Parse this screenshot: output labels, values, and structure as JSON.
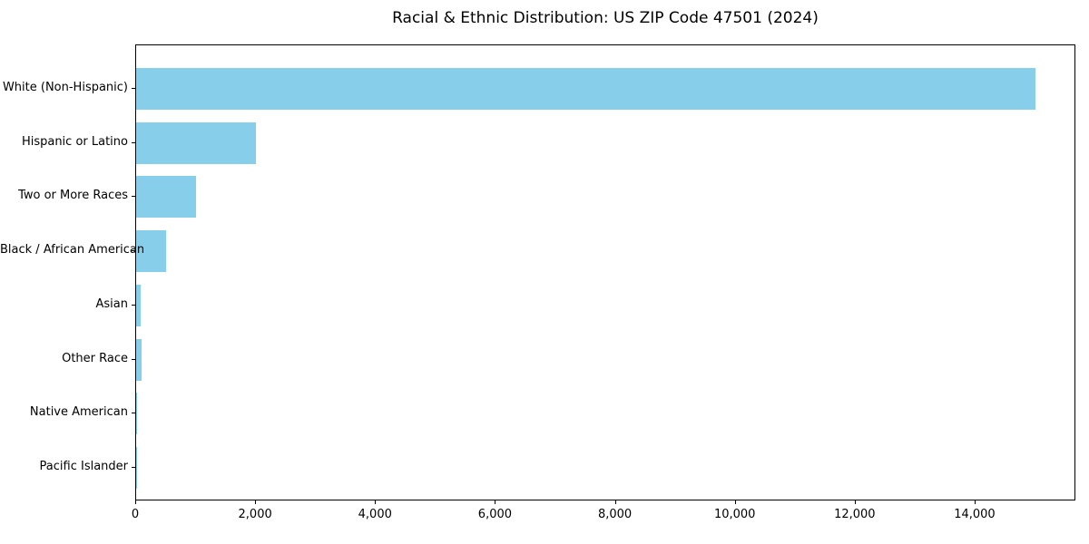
{
  "chart_data": {
    "type": "bar",
    "orientation": "horizontal",
    "title": "Racial & Ethnic Distribution: US ZIP Code 47501 (2024)",
    "categories": [
      "White (Non-Hispanic)",
      "Hispanic or Latino",
      "Two or More Races",
      "Black / African American",
      "Asian",
      "Other Race",
      "Native American",
      "Pacific Islander"
    ],
    "values": [
      15000,
      2000,
      1000,
      500,
      75,
      85,
      10,
      5
    ],
    "xlabel": "",
    "ylabel": "",
    "xlim": [
      0,
      15650
    ],
    "x_ticks": [
      0,
      2000,
      4000,
      6000,
      8000,
      10000,
      12000,
      14000
    ],
    "x_tick_labels": [
      "0",
      "2,000",
      "4,000",
      "6,000",
      "8,000",
      "10,000",
      "12,000",
      "14,000"
    ],
    "bar_color": "#87CEEB",
    "text_color": "#000000",
    "grid": false,
    "legend": null
  }
}
